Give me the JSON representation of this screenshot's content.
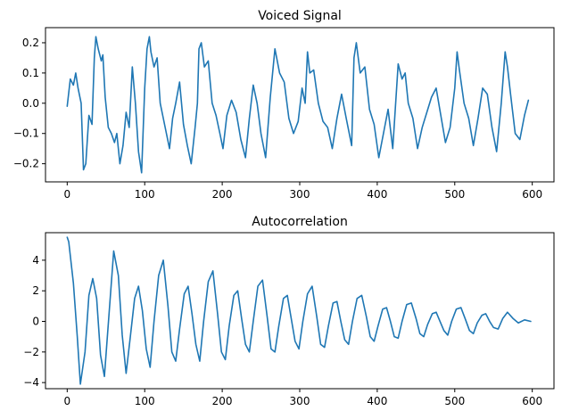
{
  "colors": {
    "series": "#1f77b4",
    "axes": "#000000",
    "background": "#ffffff"
  },
  "chart_data": [
    {
      "type": "line",
      "title": "Voiced Signal",
      "xlabel": "",
      "ylabel": "",
      "xlim": [
        -28,
        628
      ],
      "ylim": [
        -0.26,
        0.25
      ],
      "xticks": [
        0,
        100,
        200,
        300,
        400,
        500,
        600
      ],
      "xtick_labels": [
        "0",
        "100",
        "200",
        "300",
        "400",
        "500",
        "600"
      ],
      "yticks": [
        -0.2,
        -0.1,
        0.0,
        0.1,
        0.2
      ],
      "ytick_labels": [
        "−0.2",
        "−0.1",
        "0.0",
        "0.1",
        "0.2"
      ],
      "grid": false,
      "series": [
        {
          "x": [
            0,
            4,
            8,
            11,
            14,
            18,
            21,
            24,
            28,
            32,
            35,
            37,
            40,
            44,
            46,
            49,
            53,
            57,
            61,
            64,
            68,
            72,
            76,
            80,
            84,
            88,
            92,
            96,
            100,
            103,
            106,
            108,
            112,
            116,
            120,
            124,
            128,
            132,
            136,
            140,
            145,
            150,
            155,
            160,
            165,
            168,
            170,
            173,
            177,
            182,
            187,
            192,
            197,
            201,
            206,
            212,
            218,
            224,
            230,
            235,
            240,
            245,
            250,
            256,
            262,
            268,
            274,
            280,
            286,
            292,
            298,
            303,
            307,
            310,
            313,
            318,
            324,
            330,
            336,
            342,
            348,
            354,
            360,
            367,
            370,
            373,
            378,
            384,
            390,
            396,
            402,
            408,
            414,
            420,
            427,
            432,
            436,
            440,
            446,
            452,
            458,
            464,
            470,
            476,
            482,
            488,
            494,
            500,
            503,
            506,
            512,
            518,
            524,
            530,
            536,
            542,
            548,
            554,
            560,
            565,
            568,
            572,
            578,
            584,
            590,
            595
          ],
          "y": [
            -0.01,
            0.08,
            0.06,
            0.1,
            0.05,
            0.0,
            -0.22,
            -0.2,
            -0.04,
            -0.07,
            0.15,
            0.22,
            0.18,
            0.14,
            0.16,
            0.02,
            -0.08,
            -0.1,
            -0.13,
            -0.1,
            -0.2,
            -0.14,
            -0.03,
            -0.08,
            0.12,
            0.0,
            -0.16,
            -0.23,
            0.05,
            0.18,
            0.22,
            0.17,
            0.12,
            0.15,
            0.0,
            -0.05,
            -0.1,
            -0.15,
            -0.05,
            0.0,
            0.07,
            -0.07,
            -0.14,
            -0.2,
            -0.08,
            0.0,
            0.18,
            0.2,
            0.12,
            0.14,
            0.0,
            -0.04,
            -0.1,
            -0.15,
            -0.04,
            0.01,
            -0.03,
            -0.12,
            -0.18,
            -0.05,
            0.06,
            0.0,
            -0.1,
            -0.18,
            0.02,
            0.18,
            0.1,
            0.07,
            -0.05,
            -0.1,
            -0.06,
            0.05,
            0.0,
            0.17,
            0.1,
            0.11,
            0.0,
            -0.06,
            -0.08,
            -0.15,
            -0.05,
            0.03,
            -0.05,
            -0.14,
            0.15,
            0.2,
            0.1,
            0.12,
            -0.02,
            -0.07,
            -0.18,
            -0.1,
            -0.02,
            -0.15,
            0.13,
            0.08,
            0.1,
            0.0,
            -0.05,
            -0.15,
            -0.08,
            -0.03,
            0.02,
            0.05,
            -0.04,
            -0.13,
            -0.08,
            0.05,
            0.17,
            0.11,
            0.0,
            -0.05,
            -0.14,
            -0.05,
            0.05,
            0.03,
            -0.08,
            -0.16,
            0.0,
            0.17,
            0.12,
            0.03,
            -0.1,
            -0.12,
            -0.04,
            0.01
          ]
        }
      ]
    },
    {
      "type": "line",
      "title": "Autocorrelation",
      "xlabel": "",
      "ylabel": "",
      "xlim": [
        -28,
        628
      ],
      "ylim": [
        -4.4,
        5.8
      ],
      "xticks": [
        0,
        100,
        200,
        300,
        400,
        500,
        600
      ],
      "xtick_labels": [
        "0",
        "100",
        "200",
        "300",
        "400",
        "500",
        "600"
      ],
      "yticks": [
        -4,
        -2,
        0,
        2,
        4
      ],
      "ytick_labels": [
        "−4",
        "−2",
        "0",
        "2",
        "4"
      ],
      "grid": false,
      "series": [
        {
          "x": [
            0,
            2,
            8,
            13,
            17,
            23,
            28,
            33,
            38,
            43,
            48,
            54,
            60,
            66,
            71,
            76,
            81,
            87,
            92,
            97,
            102,
            107,
            112,
            118,
            124,
            130,
            135,
            140,
            145,
            151,
            156,
            161,
            166,
            171,
            176,
            182,
            188,
            194,
            199,
            204,
            209,
            215,
            220,
            225,
            230,
            235,
            240,
            246,
            252,
            258,
            263,
            268,
            273,
            279,
            284,
            289,
            294,
            299,
            304,
            310,
            316,
            322,
            327,
            332,
            337,
            343,
            348,
            353,
            358,
            363,
            368,
            374,
            380,
            386,
            391,
            396,
            401,
            407,
            412,
            417,
            422,
            427,
            432,
            438,
            444,
            450,
            455,
            460,
            465,
            471,
            476,
            481,
            486,
            491,
            496,
            502,
            508,
            514,
            519,
            524,
            529,
            535,
            540,
            545,
            550,
            556,
            562,
            568,
            575,
            582,
            590,
            598
          ],
          "y": [
            5.5,
            5.2,
            2.5,
            -1.0,
            -4.1,
            -2.0,
            1.7,
            2.8,
            1.5,
            -2.2,
            -3.6,
            0.5,
            4.6,
            3.0,
            -0.9,
            -3.4,
            -1.2,
            1.5,
            2.3,
            0.7,
            -1.8,
            -3.0,
            0.0,
            3.0,
            4.0,
            1.0,
            -2.0,
            -2.6,
            -0.5,
            1.8,
            2.3,
            0.5,
            -1.5,
            -2.6,
            0.0,
            2.6,
            3.3,
            0.5,
            -2.0,
            -2.5,
            -0.3,
            1.7,
            2.0,
            0.2,
            -1.5,
            -2.0,
            0.0,
            2.3,
            2.7,
            0.3,
            -1.8,
            -2.0,
            -0.3,
            1.5,
            1.7,
            0.2,
            -1.3,
            -1.8,
            0.0,
            1.8,
            2.3,
            0.3,
            -1.5,
            -1.7,
            -0.3,
            1.2,
            1.3,
            0.0,
            -1.2,
            -1.5,
            0.0,
            1.5,
            1.7,
            0.3,
            -1.0,
            -1.3,
            -0.3,
            0.8,
            0.9,
            0.0,
            -1.0,
            -1.1,
            0.0,
            1.1,
            1.2,
            0.2,
            -0.8,
            -1.0,
            -0.2,
            0.5,
            0.6,
            0.0,
            -0.6,
            -0.9,
            0.0,
            0.8,
            0.9,
            0.1,
            -0.6,
            -0.8,
            -0.1,
            0.4,
            0.5,
            0.0,
            -0.4,
            -0.5,
            0.2,
            0.6,
            0.2,
            -0.1,
            0.1,
            0.0
          ]
        }
      ]
    }
  ]
}
